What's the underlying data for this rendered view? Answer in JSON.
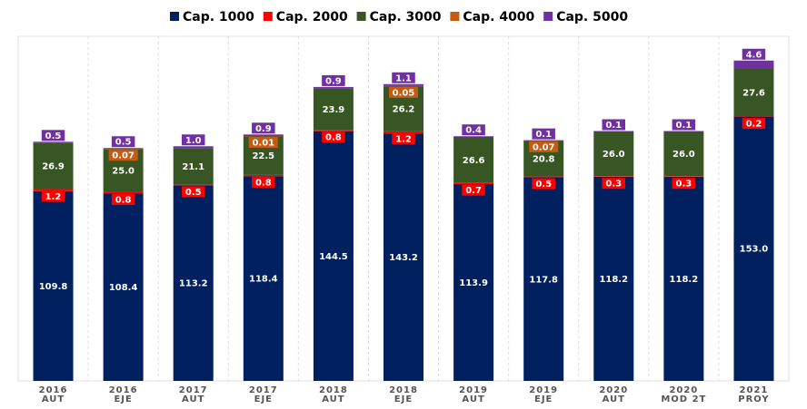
{
  "chart_data": {
    "type": "stacked-bar",
    "categories": [
      [
        "2016",
        "AUT"
      ],
      [
        "2016",
        "EJE"
      ],
      [
        "2017",
        "AUT"
      ],
      [
        "2017",
        "EJE"
      ],
      [
        "2018",
        "AUT"
      ],
      [
        "2018",
        "EJE"
      ],
      [
        "2019",
        "AUT"
      ],
      [
        "2019",
        "EJE"
      ],
      [
        "2020",
        "AUT"
      ],
      [
        "2020",
        "MOD 2T"
      ],
      [
        "2021",
        "PROY"
      ]
    ],
    "series": [
      {
        "name": "Cap. 1000",
        "color": "#002060",
        "values": [
          109.8,
          108.4,
          113.2,
          118.4,
          144.5,
          143.2,
          113.9,
          117.8,
          118.2,
          118.2,
          153.0
        ],
        "value_labels": [
          "109.8",
          "108.4",
          "113.2",
          "118.4",
          "144.5",
          "143.2",
          "113.9",
          "117.8",
          "118.2",
          "118.2",
          "153.0"
        ]
      },
      {
        "name": "Cap. 2000",
        "color": "#ff0000",
        "values": [
          1.2,
          0.8,
          0.5,
          0.8,
          0.8,
          1.2,
          0.7,
          0.5,
          0.3,
          0.3,
          0.2
        ],
        "value_labels": [
          "1.2",
          "0.8",
          "0.5",
          "0.8",
          "0.8",
          "1.2",
          "0.7",
          "0.5",
          "0.3",
          "0.3",
          "0.2"
        ]
      },
      {
        "name": "Cap. 3000",
        "color": "#375623",
        "values": [
          26.9,
          25.0,
          21.1,
          22.5,
          23.9,
          26.2,
          26.6,
          20.8,
          26.0,
          26.0,
          27.6
        ],
        "value_labels": [
          "26.9",
          "25.0",
          "21.1",
          "22.5",
          "23.9",
          "26.2",
          "26.6",
          "20.8",
          "26.0",
          "26.0",
          "27.6"
        ]
      },
      {
        "name": "Cap. 4000",
        "color": "#c55a11",
        "values": [
          null,
          0.07,
          null,
          0.01,
          null,
          0.05,
          null,
          0.07,
          null,
          null,
          null
        ],
        "value_labels": [
          null,
          "0.07",
          null,
          "0.01",
          null,
          "0.05",
          null,
          "0.07",
          null,
          null,
          null
        ]
      },
      {
        "name": "Cap. 5000",
        "color": "#7030a0",
        "values": [
          0.5,
          0.5,
          1.0,
          0.9,
          0.9,
          1.1,
          0.4,
          0.1,
          0.1,
          0.1,
          4.6
        ],
        "value_labels": [
          "0.5",
          "0.5",
          "1.0",
          "0.9",
          "0.9",
          "1.1",
          "0.4",
          "0.1",
          "0.1",
          "0.1",
          "4.6"
        ]
      }
    ],
    "ylim": [
      0,
      190
    ]
  }
}
